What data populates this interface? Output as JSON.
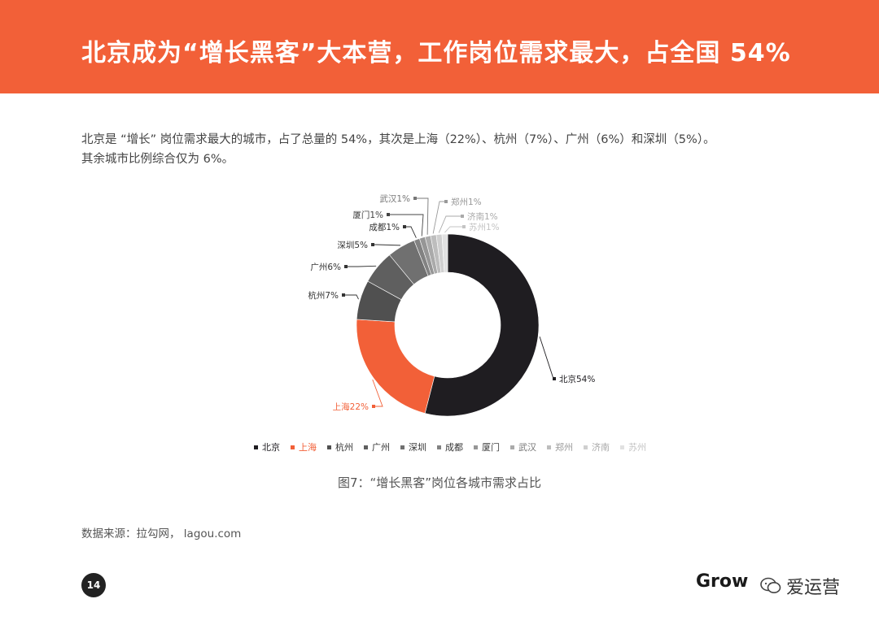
{
  "header": {
    "title": "北京成为“增长黑客”大本营，工作岗位需求最大，占全国 54%"
  },
  "description": {
    "line1": "北京是 “增长” 岗位需求最大的城市，占了总量的 54%，其次是上海（22%）、杭州（7%）、广州（6%）和深圳（5%）。",
    "line2": "其余城市比例综合仅为 6%。"
  },
  "chart_data": {
    "type": "pie",
    "donut": true,
    "categories": [
      "北京",
      "上海",
      "杭州",
      "广州",
      "深圳",
      "成都",
      "厦门",
      "武汉",
      "郑州",
      "济南",
      "苏州"
    ],
    "values": [
      54,
      22,
      7,
      6,
      5,
      1,
      1,
      1,
      1,
      1,
      1
    ],
    "labels": [
      "北京54%",
      "上海22%",
      "杭州7%",
      "广州6%",
      "深圳5%",
      "成都1%",
      "厦门1%",
      "武汉1%",
      "郑州1%",
      "济南1%",
      "苏州1%"
    ],
    "colors": [
      "#1f1d21",
      "#f26038",
      "#505050",
      "#5f5f5f",
      "#707070",
      "#828282",
      "#969696",
      "#aaaaaa",
      "#bdbdbd",
      "#cfcfcf",
      "#e1e1e1"
    ],
    "label_colors": [
      "#1f1d21",
      "#f26038",
      "#333333",
      "#333333",
      "#333333",
      "#333333",
      "#444444",
      "#777777",
      "#999999",
      "#aaaaaa",
      "#c4c4c4"
    ],
    "legend_placement": "bottom"
  },
  "caption": "图7：“增长黑客”岗位各城市需求占比",
  "source": "数据来源：拉勾网， lagou.com",
  "footer": {
    "page_number": "14",
    "brand": "Grow",
    "watermark": "爱运营",
    "icon": "wechat-icon"
  }
}
